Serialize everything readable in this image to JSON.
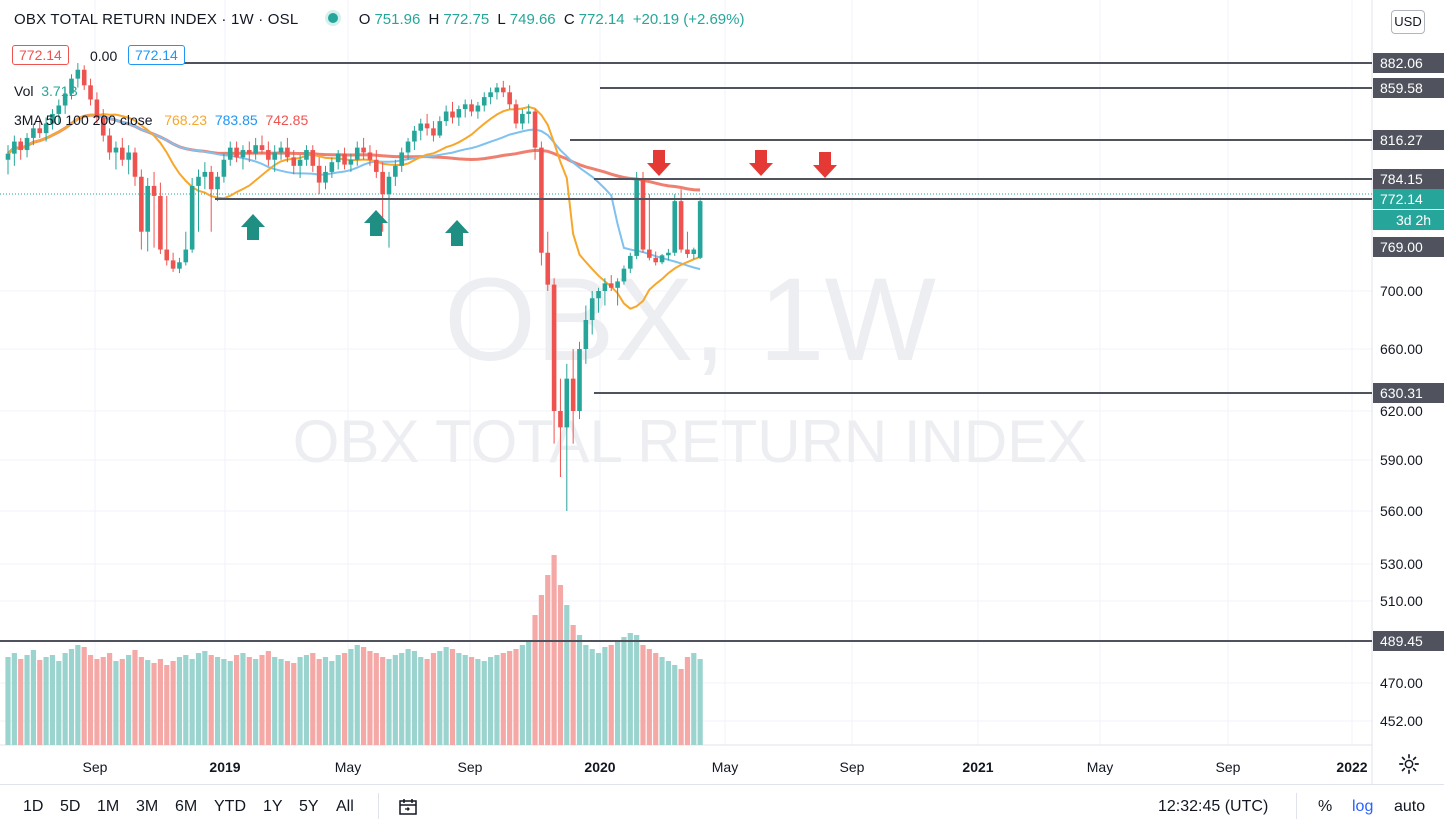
{
  "header": {
    "symbol_title": "OBX TOTAL RETURN INDEX · 1W · OSL",
    "ohlc": [
      {
        "k": "O",
        "v": "751.96"
      },
      {
        "k": "H",
        "v": "772.75"
      },
      {
        "k": "L",
        "v": "749.66"
      },
      {
        "k": "C",
        "v": "772.14"
      },
      {
        "k": "",
        "v": "+20.19 (+2.69%)"
      }
    ],
    "bid": "772.14",
    "spread": "0.00",
    "ask": "772.14",
    "vol_label": "Vol",
    "vol_value": "3.71B",
    "ma_label": "3MA 50 100 200 close",
    "ma50": "768.23",
    "ma100": "783.85",
    "ma200": "742.85",
    "currency": "USD"
  },
  "watermark": {
    "big": "OBX, 1W",
    "small": "OBX TOTAL RETURN INDEX"
  },
  "chart_data": {
    "type": "candlestick",
    "scale": "log",
    "x_axis_ticks": [
      "Sep",
      "2019",
      "May",
      "Sep",
      "2020",
      "May",
      "Sep",
      "2021",
      "May",
      "Sep",
      "2022"
    ],
    "y_axis_ticks": [
      700,
      660,
      620,
      590,
      560,
      530,
      510,
      489.45,
      470,
      452
    ],
    "price_axis_labels": [
      "882.06",
      "859.58",
      "816.27",
      "784.15",
      "772.14",
      "769.00",
      "700.00",
      "660.00",
      "630.31",
      "620.00",
      "590.00",
      "560.00",
      "530.00",
      "510.00",
      "489.45",
      "470.00",
      "452.00"
    ],
    "countdown": "3d 2h",
    "horizontal_levels": [
      882.06,
      859.58,
      816.27,
      784.15,
      772.14,
      630.31,
      489.45
    ],
    "annotations": {
      "up_arrows": 3,
      "down_arrows": 3
    },
    "series": [
      {
        "name": "MA 50",
        "color": "#f7a72b"
      },
      {
        "name": "MA 100",
        "color": "#7fc1ef"
      },
      {
        "name": "MA 200",
        "color": "#ef7f6e"
      }
    ]
  },
  "bottom": {
    "ranges": [
      "1D",
      "5D",
      "1M",
      "3M",
      "6M",
      "YTD",
      "1Y",
      "5Y",
      "All"
    ],
    "clock": "12:32:45 (UTC)",
    "pct": "%",
    "log": "log",
    "auto": "auto"
  },
  "colors": {
    "up": "#26a69a",
    "down": "#ef5350",
    "up_vol": "#9bd4cf",
    "down_vol": "#f5a9a7",
    "level": "#50535e"
  }
}
